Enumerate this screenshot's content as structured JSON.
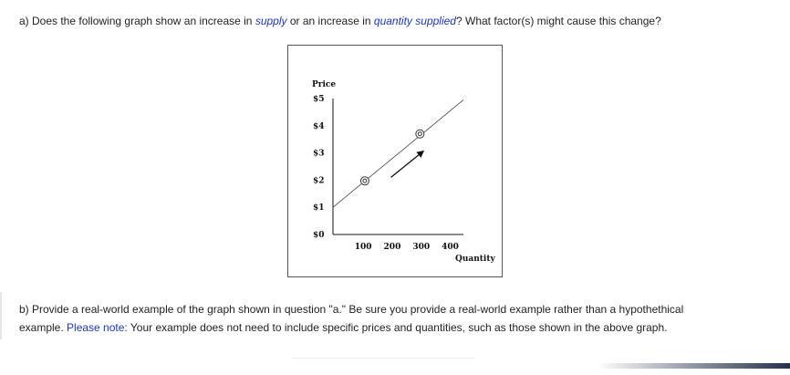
{
  "question_a": {
    "prefix": "a) Does the following graph show an increase in ",
    "term1": "supply",
    "mid": " or an increase in ",
    "term2": "quantity supplied",
    "suffix": "?  What factor(s) might cause this change?"
  },
  "question_b": {
    "line1": "b) Provide a real-world example of the graph shown in question \"a.\"  Be sure you provide a real-world example rather than a hypothethical",
    "line2_prefix": "example.  ",
    "note_label": "Please note:",
    "line2_suffix": " Your example does not need to include specific prices and quantities, such as those shown in the above graph."
  },
  "colors": {
    "link_blue": "#1a35c8",
    "text": "#222222",
    "axis": "#111111"
  },
  "chart_data": {
    "type": "line",
    "title": "",
    "ylabel": "Price",
    "xlabel": "Quantity",
    "y_ticks": [
      "$5",
      "$4",
      "$3",
      "$2",
      "$1",
      "$0"
    ],
    "y_tick_values": [
      5,
      4,
      3,
      2,
      1,
      0
    ],
    "x_ticks": [
      "100",
      "200",
      "300",
      "400"
    ],
    "x_tick_values": [
      100,
      200,
      300,
      400
    ],
    "xlim": [
      0,
      450
    ],
    "ylim": [
      0,
      5
    ],
    "grid": false,
    "series": [
      {
        "x": [
          0,
          450
        ],
        "y": [
          1.0,
          4.95
        ]
      }
    ],
    "points": [
      {
        "x": 110,
        "y": 1.97
      },
      {
        "x": 300,
        "y": 3.7
      }
    ],
    "arrow": {
      "from": {
        "x": 200,
        "y": 2.1
      },
      "to": {
        "x": 310,
        "y": 3.05
      }
    }
  }
}
